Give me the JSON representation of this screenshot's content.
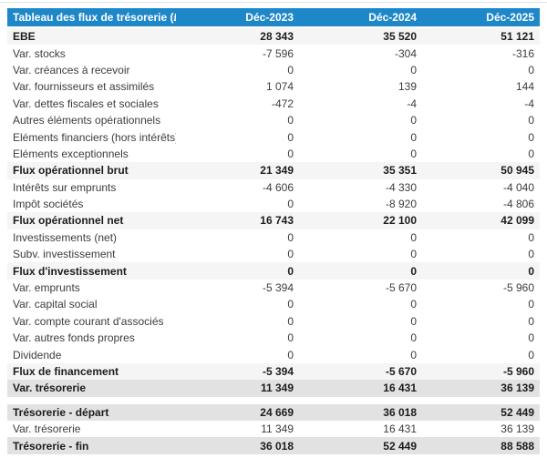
{
  "page": {
    "top_divider_color": "#e4e4e4",
    "background": "#ffffff"
  },
  "table": {
    "title": "Tableau des flux de trésorerie (£)",
    "header_bg": "#1e87c8",
    "header_text_color": "#ffffff",
    "subtotal_row_bg": "#f5f5f5",
    "total_row_bg": "#e2e2e2",
    "columns": [
      "Déc-2023",
      "Déc-2024",
      "Déc-2025"
    ],
    "rows": [
      {
        "label": "EBE",
        "values": [
          "28 343",
          "35 520",
          "51 121"
        ],
        "style": "subtotal"
      },
      {
        "label": "Var. stocks",
        "values": [
          "-7 596",
          "-304",
          "-316"
        ],
        "style": "normal"
      },
      {
        "label": "Var. créances à recevoir",
        "values": [
          "0",
          "0",
          "0"
        ],
        "style": "normal"
      },
      {
        "label": "Var. fournisseurs et assimilés",
        "values": [
          "1 074",
          "139",
          "144"
        ],
        "style": "normal"
      },
      {
        "label": "Var. dettes fiscales et sociales",
        "values": [
          "-472",
          "-4",
          "-4"
        ],
        "style": "normal"
      },
      {
        "label": "Autres éléments opérationnels",
        "values": [
          "0",
          "0",
          "0"
        ],
        "style": "normal"
      },
      {
        "label": "Eléments financiers (hors intérêts)",
        "values": [
          "0",
          "0",
          "0"
        ],
        "style": "normal"
      },
      {
        "label": "Eléments exceptionnels",
        "values": [
          "0",
          "0",
          "0"
        ],
        "style": "normal"
      },
      {
        "label": "Flux opérationnel brut",
        "values": [
          "21 349",
          "35 351",
          "50 945"
        ],
        "style": "subtotal"
      },
      {
        "label": "Intérêts sur emprunts",
        "values": [
          "-4 606",
          "-4 330",
          "-4 040"
        ],
        "style": "normal"
      },
      {
        "label": "Impôt sociétés",
        "values": [
          "0",
          "-8 920",
          "-4 806"
        ],
        "style": "normal"
      },
      {
        "label": "Flux opérationnel net",
        "values": [
          "16 743",
          "22 100",
          "42 099"
        ],
        "style": "subtotal"
      },
      {
        "label": "Investissements (net)",
        "values": [
          "0",
          "0",
          "0"
        ],
        "style": "normal"
      },
      {
        "label": "Subv. investissement",
        "values": [
          "0",
          "0",
          "0"
        ],
        "style": "normal"
      },
      {
        "label": "Flux d'investissement",
        "values": [
          "0",
          "0",
          "0"
        ],
        "style": "subtotal"
      },
      {
        "label": "Var. emprunts",
        "values": [
          "-5 394",
          "-5 670",
          "-5 960"
        ],
        "style": "normal"
      },
      {
        "label": "Var. capital social",
        "values": [
          "0",
          "0",
          "0"
        ],
        "style": "normal"
      },
      {
        "label": "Var. compte courant d'associés",
        "values": [
          "0",
          "0",
          "0"
        ],
        "style": "normal"
      },
      {
        "label": "Var. autres fonds propres",
        "values": [
          "0",
          "0",
          "0"
        ],
        "style": "normal"
      },
      {
        "label": "Dividende",
        "values": [
          "0",
          "0",
          "0"
        ],
        "style": "normal"
      },
      {
        "label": "Flux de financement",
        "values": [
          "-5 394",
          "-5 670",
          "-5 960"
        ],
        "style": "subtotal"
      },
      {
        "label": "Var. trésorerie",
        "values": [
          "11 349",
          "16 431",
          "36 139"
        ],
        "style": "total",
        "gap_after": true
      },
      {
        "label": "Trésorerie - départ",
        "values": [
          "24 669",
          "36 018",
          "52 449"
        ],
        "style": "total"
      },
      {
        "label": "Var. trésorerie",
        "values": [
          "11 349",
          "16 431",
          "36 139"
        ],
        "style": "normal"
      },
      {
        "label": "Trésorerie - fin",
        "values": [
          "36 018",
          "52 449",
          "88 588"
        ],
        "style": "total"
      }
    ]
  }
}
